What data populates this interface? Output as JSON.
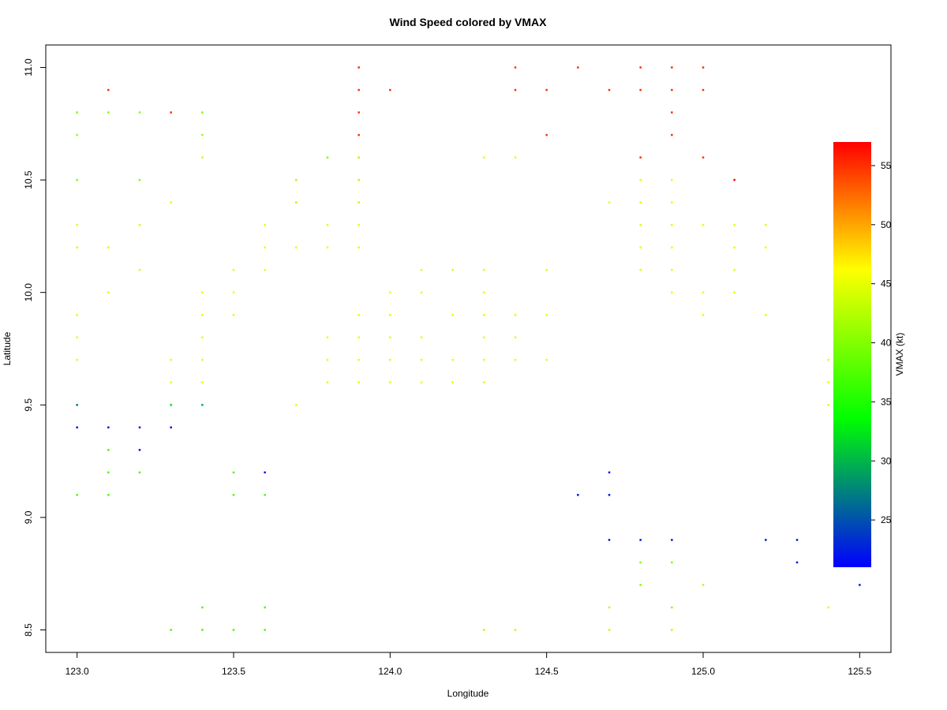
{
  "chart_data": {
    "type": "scatter",
    "title": "Wind Speed colored by VMAX",
    "xlabel": "Longitude",
    "ylabel": "Latitude",
    "xlim": [
      122.9,
      125.6
    ],
    "ylim": [
      8.4,
      11.1
    ],
    "x_ticks": [
      123.0,
      123.5,
      124.0,
      124.5,
      125.0,
      125.5
    ],
    "x_tick_labels": [
      "123.0",
      "123.5",
      "124.0",
      "124.5",
      "125.0",
      "125.5"
    ],
    "y_ticks": [
      8.5,
      9.0,
      9.5,
      10.0,
      10.5,
      11.0
    ],
    "y_tick_labels": [
      "8.5",
      "9.0",
      "9.5",
      "10.0",
      "10.5",
      "11.0"
    ],
    "grid": false,
    "legend": {
      "type": "colorbar",
      "placement": "right",
      "label": "VMAX (kt)",
      "range": [
        21,
        57
      ],
      "ticks": [
        25,
        30,
        35,
        40,
        45,
        50,
        55
      ],
      "tick_labels": [
        "25",
        "30",
        "35",
        "40",
        "45",
        "50",
        "55"
      ],
      "colors": [
        "#0000ff",
        "#00ff00",
        "#ffff00",
        "#ff0000"
      ]
    },
    "points": [
      [
        123.0,
        10.8,
        40
      ],
      [
        123.0,
        10.7,
        41
      ],
      [
        123.0,
        10.5,
        40
      ],
      [
        123.0,
        10.3,
        45
      ],
      [
        123.0,
        10.2,
        44
      ],
      [
        123.0,
        9.9,
        45
      ],
      [
        123.0,
        9.8,
        45
      ],
      [
        123.0,
        9.7,
        45
      ],
      [
        123.0,
        9.5,
        27
      ],
      [
        123.0,
        9.4,
        22
      ],
      [
        123.0,
        9.1,
        37
      ],
      [
        123.1,
        10.9,
        55
      ],
      [
        123.1,
        10.8,
        40
      ],
      [
        123.1,
        10.2,
        44
      ],
      [
        123.1,
        10.0,
        45
      ],
      [
        123.1,
        9.4,
        22
      ],
      [
        123.1,
        9.3,
        37
      ],
      [
        123.1,
        9.2,
        37
      ],
      [
        123.1,
        9.1,
        37
      ],
      [
        123.2,
        10.8,
        40
      ],
      [
        123.2,
        10.5,
        40
      ],
      [
        123.2,
        10.3,
        44
      ],
      [
        123.2,
        10.1,
        44
      ],
      [
        123.2,
        9.4,
        22
      ],
      [
        123.2,
        9.3,
        22
      ],
      [
        123.2,
        9.2,
        37
      ],
      [
        123.3,
        10.8,
        55
      ],
      [
        123.3,
        10.4,
        45
      ],
      [
        123.3,
        9.7,
        45
      ],
      [
        123.3,
        9.6,
        45
      ],
      [
        123.3,
        9.5,
        32
      ],
      [
        123.3,
        9.4,
        22
      ],
      [
        123.3,
        8.5,
        37
      ],
      [
        123.4,
        10.8,
        40
      ],
      [
        123.4,
        10.7,
        41
      ],
      [
        123.4,
        10.6,
        44
      ],
      [
        123.4,
        10.0,
        45
      ],
      [
        123.4,
        9.9,
        45
      ],
      [
        123.4,
        9.8,
        45
      ],
      [
        123.4,
        9.7,
        45
      ],
      [
        123.4,
        9.6,
        45
      ],
      [
        123.4,
        9.5,
        30
      ],
      [
        123.4,
        8.6,
        37
      ],
      [
        123.4,
        8.5,
        37
      ],
      [
        123.5,
        10.1,
        45
      ],
      [
        123.5,
        10.0,
        45
      ],
      [
        123.5,
        9.9,
        45
      ],
      [
        123.5,
        9.2,
        37
      ],
      [
        123.5,
        9.1,
        37
      ],
      [
        123.5,
        8.5,
        37
      ],
      [
        123.6,
        10.3,
        45
      ],
      [
        123.6,
        10.2,
        45
      ],
      [
        123.6,
        10.1,
        45
      ],
      [
        123.6,
        9.2,
        22
      ],
      [
        123.6,
        9.1,
        37
      ],
      [
        123.6,
        8.6,
        37
      ],
      [
        123.6,
        8.5,
        37
      ],
      [
        123.7,
        10.5,
        42
      ],
      [
        123.7,
        10.4,
        42
      ],
      [
        123.7,
        10.2,
        45
      ],
      [
        123.7,
        9.5,
        45
      ],
      [
        123.8,
        10.6,
        40
      ],
      [
        123.8,
        10.3,
        45
      ],
      [
        123.8,
        10.2,
        45
      ],
      [
        123.8,
        9.8,
        45
      ],
      [
        123.8,
        9.7,
        45
      ],
      [
        123.8,
        9.6,
        45
      ],
      [
        123.9,
        11.0,
        55
      ],
      [
        123.9,
        10.9,
        55
      ],
      [
        123.9,
        10.8,
        55
      ],
      [
        123.9,
        10.7,
        55
      ],
      [
        123.9,
        10.6,
        42
      ],
      [
        123.9,
        10.5,
        42
      ],
      [
        123.9,
        10.4,
        43
      ],
      [
        123.9,
        10.3,
        45
      ],
      [
        123.9,
        10.2,
        45
      ],
      [
        123.9,
        9.9,
        45
      ],
      [
        123.9,
        9.8,
        45
      ],
      [
        123.9,
        9.7,
        45
      ],
      [
        123.9,
        9.6,
        45
      ],
      [
        124.0,
        10.9,
        55
      ],
      [
        124.0,
        10.0,
        45
      ],
      [
        124.0,
        9.9,
        45
      ],
      [
        124.0,
        9.8,
        45
      ],
      [
        124.0,
        9.7,
        45
      ],
      [
        124.0,
        9.6,
        45
      ],
      [
        124.1,
        10.1,
        45
      ],
      [
        124.1,
        10.0,
        45
      ],
      [
        124.1,
        9.8,
        45
      ],
      [
        124.1,
        9.7,
        45
      ],
      [
        124.1,
        9.6,
        45
      ],
      [
        124.2,
        10.1,
        45
      ],
      [
        124.2,
        9.9,
        45
      ],
      [
        124.2,
        9.7,
        45
      ],
      [
        124.2,
        9.6,
        45
      ],
      [
        124.3,
        10.6,
        45
      ],
      [
        124.3,
        10.1,
        45
      ],
      [
        124.3,
        10.0,
        45
      ],
      [
        124.3,
        9.9,
        45
      ],
      [
        124.3,
        9.8,
        45
      ],
      [
        124.3,
        9.7,
        45
      ],
      [
        124.3,
        9.6,
        45
      ],
      [
        124.3,
        8.5,
        43
      ],
      [
        124.4,
        11.0,
        55
      ],
      [
        124.4,
        10.9,
        55
      ],
      [
        124.4,
        10.6,
        45
      ],
      [
        124.4,
        9.9,
        45
      ],
      [
        124.4,
        9.8,
        45
      ],
      [
        124.4,
        9.7,
        45
      ],
      [
        124.4,
        8.5,
        43
      ],
      [
        124.5,
        10.9,
        55
      ],
      [
        124.5,
        10.7,
        55
      ],
      [
        124.5,
        10.1,
        45
      ],
      [
        124.5,
        9.9,
        45
      ],
      [
        124.5,
        9.7,
        45
      ],
      [
        124.6,
        11.0,
        55
      ],
      [
        124.6,
        9.1,
        22
      ],
      [
        124.7,
        10.9,
        55
      ],
      [
        124.7,
        10.4,
        45
      ],
      [
        124.7,
        9.2,
        22
      ],
      [
        124.7,
        9.1,
        22
      ],
      [
        124.7,
        8.9,
        22
      ],
      [
        124.7,
        8.6,
        43
      ],
      [
        124.7,
        8.5,
        43
      ],
      [
        124.8,
        11.0,
        55
      ],
      [
        124.8,
        10.9,
        55
      ],
      [
        124.8,
        10.6,
        55
      ],
      [
        124.8,
        10.5,
        45
      ],
      [
        124.8,
        10.4,
        45
      ],
      [
        124.8,
        10.3,
        45
      ],
      [
        124.8,
        10.2,
        45
      ],
      [
        124.8,
        10.1,
        45
      ],
      [
        124.8,
        8.9,
        22
      ],
      [
        124.8,
        8.8,
        40
      ],
      [
        124.8,
        8.7,
        40
      ],
      [
        124.9,
        11.0,
        55
      ],
      [
        124.9,
        10.9,
        55
      ],
      [
        124.9,
        10.8,
        55
      ],
      [
        124.9,
        10.7,
        55
      ],
      [
        124.9,
        10.5,
        45
      ],
      [
        124.9,
        10.4,
        45
      ],
      [
        124.9,
        10.3,
        45
      ],
      [
        124.9,
        10.2,
        45
      ],
      [
        124.9,
        10.1,
        45
      ],
      [
        124.9,
        10.0,
        45
      ],
      [
        124.9,
        8.9,
        22
      ],
      [
        124.9,
        8.8,
        40
      ],
      [
        124.9,
        8.6,
        40
      ],
      [
        124.9,
        8.5,
        43
      ],
      [
        125.0,
        11.0,
        55
      ],
      [
        125.0,
        10.9,
        55
      ],
      [
        125.0,
        10.6,
        55
      ],
      [
        125.0,
        10.3,
        45
      ],
      [
        125.0,
        10.0,
        45
      ],
      [
        125.0,
        9.9,
        45
      ],
      [
        125.0,
        8.7,
        43
      ],
      [
        125.1,
        10.5,
        57
      ],
      [
        125.1,
        10.3,
        45
      ],
      [
        125.1,
        10.2,
        45
      ],
      [
        125.1,
        10.1,
        45
      ],
      [
        125.1,
        10.0,
        45
      ],
      [
        125.2,
        10.3,
        45
      ],
      [
        125.2,
        10.2,
        45
      ],
      [
        125.2,
        9.9,
        45
      ],
      [
        125.2,
        8.9,
        22
      ],
      [
        125.3,
        8.9,
        22
      ],
      [
        125.3,
        8.8,
        22
      ],
      [
        125.4,
        9.7,
        45
      ],
      [
        125.4,
        9.6,
        45
      ],
      [
        125.4,
        9.5,
        45
      ],
      [
        125.4,
        8.6,
        45
      ],
      [
        125.5,
        8.7,
        22
      ]
    ]
  }
}
